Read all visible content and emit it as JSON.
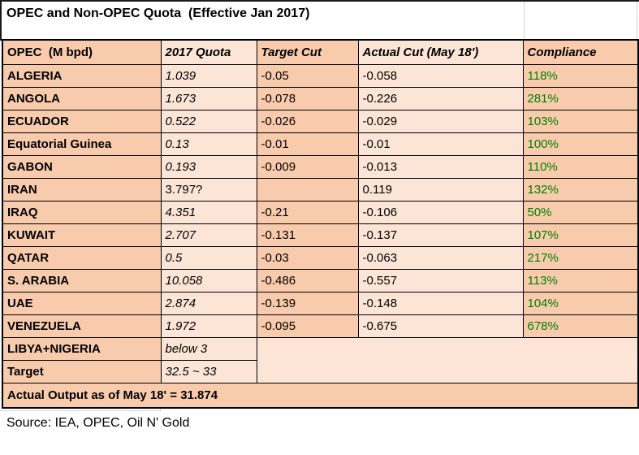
{
  "title": "OPEC and Non-OPEC Quota  (Effective Jan 2017)",
  "source": "Source: IEA, OPEC, Oil N' Gold",
  "colors": {
    "header_and_odd_col_fill": "#F8CBAD",
    "even_col_fill": "#FCE4D6",
    "compliance_text": "#008000",
    "table_border": "#000000",
    "excel_gridline": "#C9D4E4"
  },
  "table": {
    "columns": [
      {
        "label": "OPEC  (M bpd)",
        "italic": false
      },
      {
        "label": "2017 Quota",
        "italic": true
      },
      {
        "label": "Target Cut",
        "italic": true
      },
      {
        "label": "Actual Cut (May 18')",
        "italic": true
      },
      {
        "label": "Compliance",
        "italic": true
      }
    ],
    "rows": [
      {
        "country": "ALGERIA",
        "quota": "1.039",
        "quota_italic": true,
        "target_cut": "-0.05",
        "actual_cut": "-0.058",
        "compliance": "118%"
      },
      {
        "country": "ANGOLA",
        "quota": "1.673",
        "quota_italic": true,
        "target_cut": "-0.078",
        "actual_cut": "-0.226",
        "compliance": "281%"
      },
      {
        "country": "ECUADOR",
        "quota": "0.522",
        "quota_italic": true,
        "target_cut": "-0.026",
        "actual_cut": "-0.029",
        "compliance": "103%"
      },
      {
        "country": "Equatorial Guinea",
        "quota": "0.13",
        "quota_italic": true,
        "target_cut": "-0.01",
        "actual_cut": "-0.01",
        "compliance": "100%"
      },
      {
        "country": "GABON",
        "quota": "0.193",
        "quota_italic": true,
        "target_cut": "-0.009",
        "actual_cut": "-0.013",
        "compliance": "110%"
      },
      {
        "country": "IRAN",
        "quota": "3.797?",
        "quota_italic": false,
        "target_cut": "",
        "actual_cut": "0.119",
        "compliance": "132%"
      },
      {
        "country": "IRAQ",
        "quota": "4.351",
        "quota_italic": true,
        "target_cut": "-0.21",
        "actual_cut": "-0.106",
        "compliance": "50%"
      },
      {
        "country": "KUWAIT",
        "quota": "2.707",
        "quota_italic": true,
        "target_cut": "-0.131",
        "actual_cut": "-0.137",
        "compliance": "107%"
      },
      {
        "country": "QATAR",
        "quota": "0.5",
        "quota_italic": true,
        "target_cut": "-0.03",
        "actual_cut": "-0.063",
        "compliance": "217%"
      },
      {
        "country": "S. ARABIA",
        "quota": "10.058",
        "quota_italic": true,
        "target_cut": "-0.486",
        "actual_cut": "-0.557",
        "compliance": "113%"
      },
      {
        "country": "UAE",
        "quota": "2.874",
        "quota_italic": true,
        "target_cut": "-0.139",
        "actual_cut": "-0.148",
        "compliance": "104%"
      },
      {
        "country": "VENEZUELA",
        "quota": "1.972",
        "quota_italic": true,
        "target_cut": "-0.095",
        "actual_cut": "-0.675",
        "compliance": "678%"
      }
    ],
    "special_rows": {
      "libya_nigeria": {
        "label": "LIBYA+NIGERIA",
        "value": "below 3"
      },
      "target": {
        "label": "Target",
        "value": "32.5 ~ 33"
      },
      "actual_output": "Actual Output as of May 18' = 31.874"
    }
  },
  "chart_data": {
    "type": "table",
    "title": "OPEC and Non-OPEC Quota  (Effective Jan 2017)",
    "columns": [
      "OPEC  (M bpd)",
      "2017 Quota",
      "Target Cut",
      "Actual Cut (May 18')",
      "Compliance"
    ],
    "rows": [
      [
        "ALGERIA",
        "1.039",
        "-0.05",
        "-0.058",
        "118%"
      ],
      [
        "ANGOLA",
        "1.673",
        "-0.078",
        "-0.226",
        "281%"
      ],
      [
        "ECUADOR",
        "0.522",
        "-0.026",
        "-0.029",
        "103%"
      ],
      [
        "Equatorial Guinea",
        "0.13",
        "-0.01",
        "-0.01",
        "100%"
      ],
      [
        "GABON",
        "0.193",
        "-0.009",
        "-0.013",
        "110%"
      ],
      [
        "IRAN",
        "3.797?",
        "",
        "0.119",
        "132%"
      ],
      [
        "IRAQ",
        "4.351",
        "-0.21",
        "-0.106",
        "50%"
      ],
      [
        "KUWAIT",
        "2.707",
        "-0.131",
        "-0.137",
        "107%"
      ],
      [
        "QATAR",
        "0.5",
        "-0.03",
        "-0.063",
        "217%"
      ],
      [
        "S. ARABIA",
        "10.058",
        "-0.486",
        "-0.557",
        "113%"
      ],
      [
        "UAE",
        "2.874",
        "-0.139",
        "-0.148",
        "104%"
      ],
      [
        "VENEZUELA",
        "1.972",
        "-0.095",
        "-0.675",
        "678%"
      ],
      [
        "LIBYA+NIGERIA",
        "below 3",
        "",
        "",
        ""
      ],
      [
        "Target",
        "32.5 ~ 33",
        "",
        "",
        ""
      ],
      [
        "Actual Output as of May 18' = 31.874",
        "",
        "",
        "",
        ""
      ]
    ],
    "footnote": "Source: IEA, OPEC, Oil N' Gold"
  }
}
